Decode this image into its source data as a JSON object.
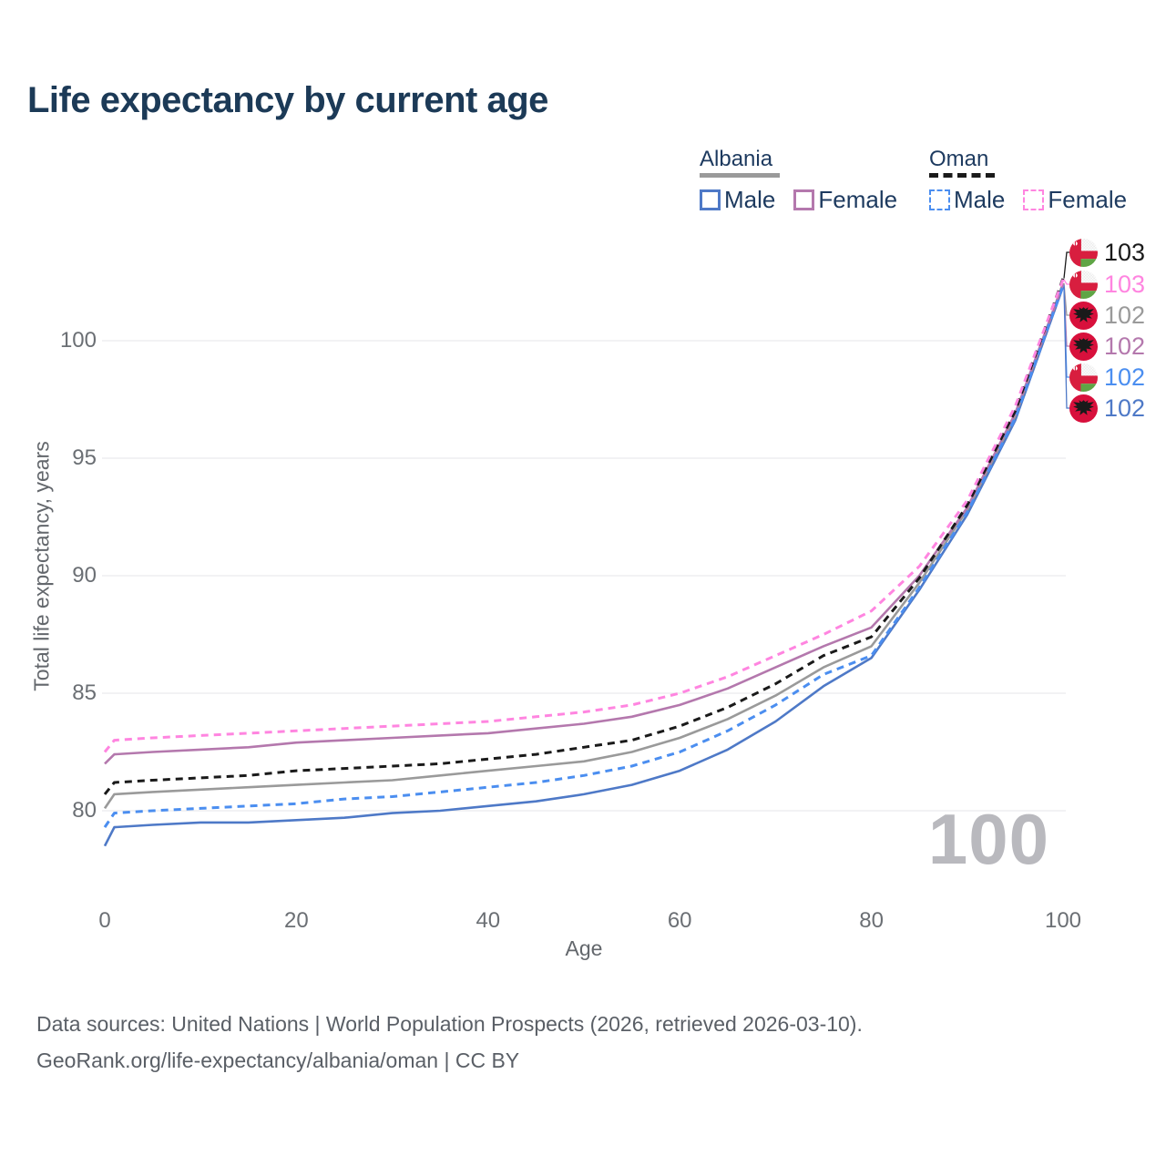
{
  "title": "Life expectancy by current age",
  "legend": {
    "albania": {
      "label": "Albania",
      "male": "Male",
      "female": "Female"
    },
    "oman": {
      "label": "Oman",
      "male": "Male",
      "female": "Female"
    }
  },
  "watermark": "100",
  "chart_data": {
    "type": "line",
    "title": "Life expectancy by current age",
    "xlabel": "Age",
    "ylabel": "Total life expectancy, years",
    "xlim": [
      0,
      100
    ],
    "ylim": [
      78,
      103.5
    ],
    "xticks": [
      0,
      20,
      40,
      60,
      80,
      100
    ],
    "yticks": [
      80,
      85,
      90,
      95,
      100
    ],
    "grid": "horizontal",
    "legend_position": "top-right",
    "x": [
      0,
      1,
      5,
      10,
      15,
      20,
      25,
      30,
      35,
      40,
      45,
      50,
      55,
      60,
      65,
      70,
      75,
      80,
      85,
      90,
      95,
      100
    ],
    "series": [
      {
        "key": "albania_male",
        "name": "Albania Male",
        "country": "Albania",
        "sex": "Male",
        "dash": false,
        "color": "#4e79c7",
        "end_label": "102",
        "values": [
          78.5,
          79.3,
          79.4,
          79.5,
          79.5,
          79.6,
          79.7,
          79.9,
          80.0,
          80.2,
          80.4,
          80.7,
          81.1,
          81.7,
          82.6,
          83.8,
          85.3,
          86.5,
          89.4,
          92.6,
          96.6,
          102.3
        ]
      },
      {
        "key": "albania_total",
        "name": "Albania Total",
        "country": "Albania",
        "sex": "All",
        "dash": false,
        "color": "#9a9a9a",
        "end_label": "102",
        "values": [
          80.1,
          80.7,
          80.8,
          80.9,
          81.0,
          81.1,
          81.2,
          81.3,
          81.5,
          81.7,
          81.9,
          82.1,
          82.5,
          83.1,
          83.9,
          84.9,
          86.1,
          87.0,
          89.7,
          92.8,
          96.8,
          102.45
        ]
      },
      {
        "key": "albania_female",
        "name": "Albania Female",
        "country": "Albania",
        "sex": "Female",
        "dash": false,
        "color": "#b478ad",
        "end_label": "102",
        "values": [
          82.0,
          82.4,
          82.5,
          82.6,
          82.7,
          82.9,
          83.0,
          83.1,
          83.2,
          83.3,
          83.5,
          83.7,
          84.0,
          84.5,
          85.2,
          86.1,
          87.0,
          87.8,
          90.0,
          92.9,
          96.9,
          102.4
        ]
      },
      {
        "key": "oman_male",
        "name": "Oman Male",
        "country": "Oman",
        "sex": "Male",
        "dash": true,
        "color": "#4b8ef0",
        "end_label": "102",
        "values": [
          79.3,
          79.9,
          80.0,
          80.1,
          80.2,
          80.3,
          80.5,
          80.6,
          80.8,
          81.0,
          81.2,
          81.5,
          81.9,
          82.5,
          83.4,
          84.5,
          85.8,
          86.6,
          89.5,
          92.7,
          96.7,
          102.35
        ]
      },
      {
        "key": "oman_total",
        "name": "Oman Total",
        "country": "Oman",
        "sex": "All",
        "dash": true,
        "color": "#1a1a1a",
        "end_label": "103",
        "values": [
          80.7,
          81.2,
          81.3,
          81.4,
          81.5,
          81.7,
          81.8,
          81.9,
          82.0,
          82.2,
          82.4,
          82.7,
          83.0,
          83.6,
          84.4,
          85.4,
          86.6,
          87.4,
          89.9,
          93.0,
          97.0,
          102.65
        ]
      },
      {
        "key": "oman_female",
        "name": "Oman Female",
        "country": "Oman",
        "sex": "Female",
        "dash": true,
        "color": "#ff85e0",
        "end_label": "103",
        "values": [
          82.5,
          83.0,
          83.1,
          83.2,
          83.3,
          83.4,
          83.5,
          83.6,
          83.7,
          83.8,
          84.0,
          84.2,
          84.5,
          85.0,
          85.7,
          86.6,
          87.5,
          88.5,
          90.4,
          93.2,
          97.2,
          102.6
        ]
      }
    ]
  },
  "end_labels": [
    {
      "value": "103",
      "flag": "oman",
      "series": "oman_total",
      "color": "#1a1a1a"
    },
    {
      "value": "103",
      "flag": "oman",
      "series": "oman_female",
      "color": "#ff85e0"
    },
    {
      "value": "102",
      "flag": "albania",
      "series": "albania_total",
      "color": "#9a9a9a"
    },
    {
      "value": "102",
      "flag": "albania",
      "series": "albania_female",
      "color": "#b478ad"
    },
    {
      "value": "102",
      "flag": "oman",
      "series": "oman_male",
      "color": "#4b8ef0"
    },
    {
      "value": "102",
      "flag": "albania",
      "series": "albania_male",
      "color": "#4e79c7"
    }
  ],
  "footer": {
    "line1": "Data sources: United Nations | World Population Prospects (2026, retrieved 2026-03-10).",
    "line2": "GeoRank.org/life-expectancy/albania/oman | CC BY"
  }
}
